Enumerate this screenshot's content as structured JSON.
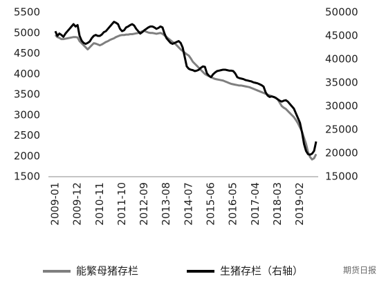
{
  "chart_data": {
    "type": "line",
    "categories": [
      "2009-01",
      null,
      null,
      null,
      null,
      null,
      null,
      null,
      null,
      null,
      null,
      "2009-12",
      null,
      null,
      null,
      null,
      null,
      null,
      null,
      null,
      null,
      null,
      "2010-11",
      null,
      null,
      null,
      null,
      null,
      null,
      null,
      null,
      null,
      null,
      "2011-10",
      null,
      null,
      null,
      null,
      null,
      null,
      null,
      null,
      null,
      null,
      "2012-09",
      null,
      null,
      null,
      null,
      null,
      null,
      null,
      null,
      null,
      null,
      "2013-08",
      null,
      null,
      null,
      null,
      null,
      null,
      null,
      null,
      null,
      null,
      "2014-07",
      null,
      null,
      null,
      null,
      null,
      null,
      null,
      null,
      null,
      null,
      "2015-06",
      null,
      null,
      null,
      null,
      null,
      null,
      null,
      null,
      null,
      null,
      "2016-05",
      null,
      null,
      null,
      null,
      null,
      null,
      null,
      null,
      null,
      null,
      "2017-04",
      null,
      null,
      null,
      null,
      null,
      null,
      null,
      null,
      null,
      null,
      "2018-03",
      null,
      null,
      null,
      null,
      null,
      null,
      null,
      null,
      null,
      null,
      "2019-02",
      null,
      null,
      null,
      null,
      null,
      null,
      null,
      null
    ],
    "series": [
      {
        "name": "能繁母猪存栏",
        "color": "#7f7f7f",
        "values": [
          4950,
          4900,
          4880,
          4850,
          4850,
          4860,
          4870,
          4880,
          4890,
          4900,
          4900,
          4890,
          4800,
          4750,
          4700,
          4650,
          4600,
          4650,
          4700,
          4750,
          4740,
          4720,
          4700,
          4720,
          4750,
          4780,
          4800,
          4830,
          4850,
          4870,
          4900,
          4920,
          4940,
          4950,
          4950,
          4960,
          4960,
          4970,
          4970,
          4980,
          4990,
          5000,
          5020,
          5040,
          5050,
          5030,
          5010,
          5000,
          5000,
          4990,
          4980,
          4990,
          5000,
          4980,
          4940,
          4900,
          4860,
          4820,
          4780,
          4750,
          4700,
          4650,
          4600,
          4560,
          4520,
          4480,
          4450,
          4380,
          4300,
          4250,
          4200,
          4150,
          4100,
          4050,
          4000,
          3970,
          3950,
          3930,
          3900,
          3880,
          3870,
          3860,
          3850,
          3840,
          3820,
          3800,
          3780,
          3760,
          3750,
          3740,
          3730,
          3720,
          3720,
          3710,
          3700,
          3690,
          3680,
          3660,
          3640,
          3620,
          3600,
          3580,
          3560,
          3540,
          3520,
          3500,
          3480,
          3460,
          3440,
          3420,
          3380,
          3300,
          3220,
          3180,
          3150,
          3100,
          3050,
          3000,
          2950,
          2880,
          2800,
          2700,
          2600,
          2450,
          2300,
          2100,
          1980,
          1920,
          1950,
          2050
        ]
      },
      {
        "name": "生猪存栏（右轴）",
        "color": "#000000",
        "axis": "y2",
        "values": [
          46000,
          45000,
          45500,
          45200,
          44800,
          45500,
          46000,
          46500,
          47000,
          47500,
          47000,
          47300,
          45000,
          44000,
          43500,
          43300,
          43500,
          43800,
          44500,
          45000,
          45200,
          45000,
          45000,
          45300,
          45800,
          46000,
          46500,
          47000,
          47500,
          48000,
          47800,
          47500,
          46500,
          46000,
          46200,
          46800,
          47000,
          47300,
          47500,
          47200,
          46500,
          46000,
          45500,
          45800,
          46200,
          46500,
          46800,
          47000,
          47000,
          46800,
          46500,
          46700,
          47000,
          46800,
          45500,
          44500,
          44000,
          43500,
          43300,
          43500,
          43700,
          43900,
          43500,
          42500,
          40500,
          38500,
          38000,
          37800,
          37700,
          37500,
          37600,
          37800,
          38200,
          38500,
          38400,
          37000,
          36500,
          36200,
          36800,
          37200,
          37500,
          37600,
          37700,
          37800,
          37800,
          37700,
          37600,
          37600,
          37500,
          37000,
          36200,
          36000,
          35900,
          35800,
          35600,
          35500,
          35400,
          35300,
          35100,
          35000,
          34900,
          34700,
          34500,
          34200,
          33000,
          32300,
          32000,
          32100,
          32000,
          31800,
          31500,
          31200,
          31000,
          31200,
          31300,
          31000,
          30500,
          30000,
          29500,
          28500,
          27500,
          26500,
          24500,
          22000,
          20500,
          19800,
          19700,
          19900,
          20500,
          22500
        ]
      }
    ],
    "ylim": [
      1500,
      5500
    ],
    "yticks": [
      1500,
      2000,
      2500,
      3000,
      3500,
      4000,
      4500,
      5000,
      5500
    ],
    "y2lim": [
      15000,
      50000
    ],
    "y2ticks": [
      15000,
      20000,
      25000,
      30000,
      35000,
      40000,
      45000,
      50000
    ],
    "grid": false,
    "legend": "bottom",
    "watermark": "期货日报"
  }
}
